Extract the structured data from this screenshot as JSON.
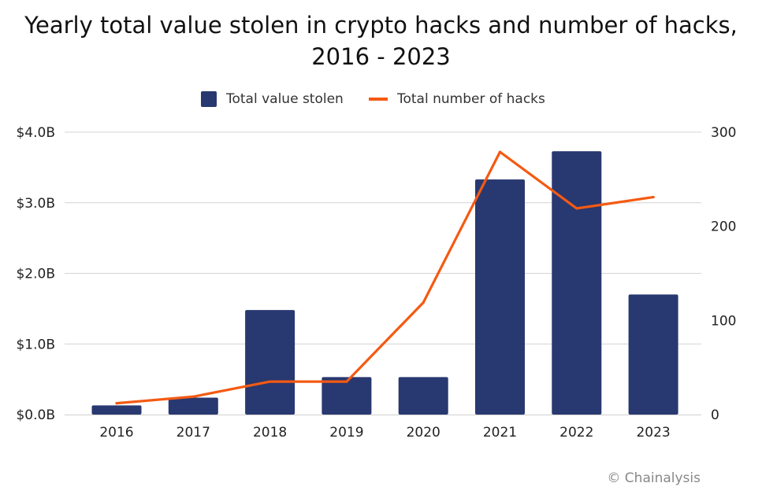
{
  "chart_data": {
    "type": "bar",
    "title_line1": "Yearly total value stolen in crypto hacks and number of hacks,",
    "title_line2": "2016 - 2023",
    "categories": [
      "2016",
      "2017",
      "2018",
      "2019",
      "2020",
      "2021",
      "2022",
      "2023"
    ],
    "series": [
      {
        "name": "Total value stolen",
        "type": "bar",
        "axis": "left",
        "color": "#283870",
        "values": [
          0.13,
          0.24,
          1.48,
          0.53,
          0.53,
          3.33,
          3.73,
          1.7
        ]
      },
      {
        "name": "Total number of hacks",
        "type": "line",
        "axis": "right",
        "color": "#f45a12",
        "values": [
          12,
          19,
          35,
          35,
          119,
          279,
          219,
          231
        ]
      }
    ],
    "y_left": {
      "ylim": [
        0,
        4.0
      ],
      "ticks": [
        0,
        1,
        2,
        3,
        4
      ],
      "tick_labels": [
        "$0.0B",
        "$1.0B",
        "$2.0B",
        "$3.0B",
        "$4.0B"
      ]
    },
    "y_right": {
      "ylim": [
        0,
        300
      ],
      "ticks": [
        0,
        100,
        200,
        300
      ],
      "tick_labels": [
        "0",
        "100",
        "200",
        "300"
      ]
    },
    "grid": true,
    "legend_position": "top-center",
    "credit": "© Chainalysis"
  }
}
